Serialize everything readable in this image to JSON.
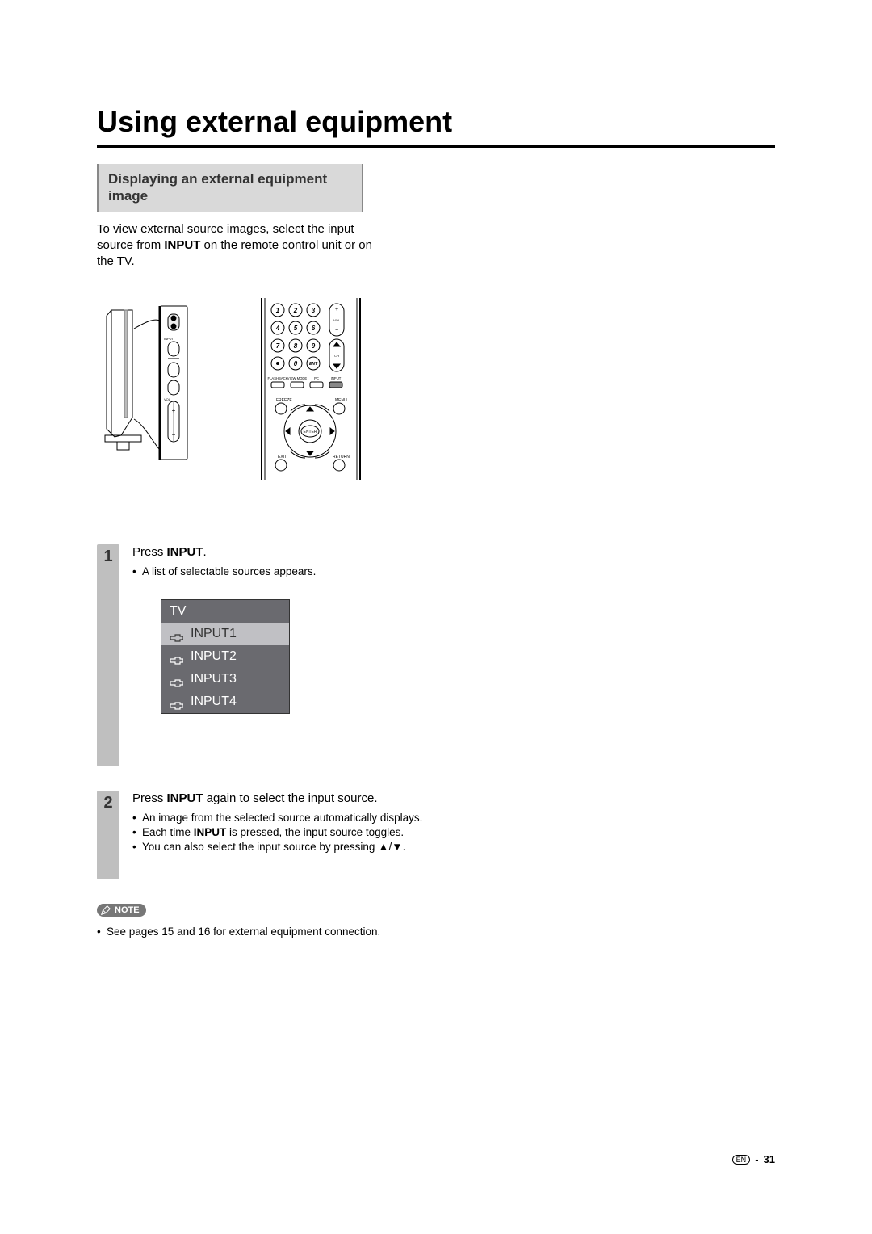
{
  "title": "Using external equipment",
  "section_header": "Displaying an external equipment image",
  "intro": {
    "pre": "To view external source images, select the input source from ",
    "bold": "INPUT",
    "post": " on the remote control unit or on the TV."
  },
  "remote": {
    "numbers": [
      "1",
      "2",
      "3",
      "4",
      "5",
      "6",
      "7",
      "8",
      "9",
      "0"
    ],
    "vol_label": "VOL",
    "ch_label": "CH",
    "ent_label": "ENT",
    "row_labels": [
      "FLASHBACK",
      "VIEW MODE",
      "PC",
      "INPUT"
    ],
    "freeze": "FREEZE",
    "menu": "MENU",
    "enter": "ENTER",
    "exit": "EXIT",
    "return": "RETURN"
  },
  "step1": {
    "num": "1",
    "text_pre": "Press ",
    "text_bold": "INPUT",
    "text_post": ".",
    "bullet": "A list of selectable sources appears."
  },
  "input_menu": [
    "TV",
    "INPUT1",
    "INPUT2",
    "INPUT3",
    "INPUT4"
  ],
  "input_selected_index": 1,
  "step2": {
    "num": "2",
    "line_pre": "Press ",
    "line_bold1": "INPUT",
    "line_post": " again to select the input source.",
    "b1": "An image from the selected source automatically displays.",
    "b2_pre": "Each time ",
    "b2_bold": "INPUT",
    "b2_post": " is pressed, the input source toggles.",
    "b3_pre": "You can also select the input source by pressing ",
    "b3_sym": "▲/▼",
    "b3_post": "."
  },
  "note": {
    "label": "NOTE",
    "bullet": "See pages 15 and 16 for external equipment connection."
  },
  "footer": {
    "lang": "EN",
    "sep": "-",
    "page": "31"
  },
  "colors": {
    "section_bg": "#d9d9d9",
    "step_bg": "#bfbfbf",
    "menu_dark": "#6a6a6f",
    "menu_light": "#c0c0c4",
    "note_bg": "#777"
  }
}
